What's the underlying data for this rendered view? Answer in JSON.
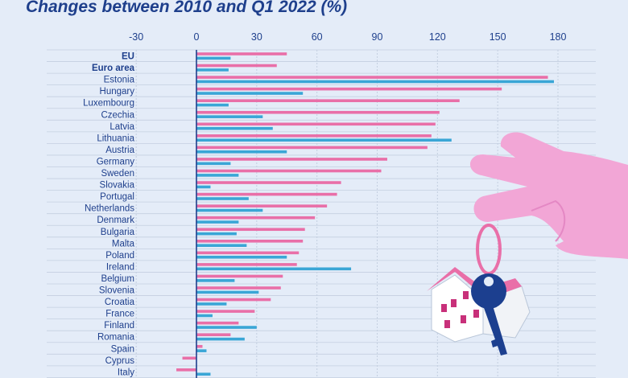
{
  "chart_data": {
    "type": "bar",
    "orientation": "horizontal",
    "title": "Changes between 2010 and Q1 2022 (%)",
    "xlabel": "",
    "ylabel": "",
    "xlim": [
      -30,
      180
    ],
    "xticks": [
      -30,
      0,
      30,
      60,
      90,
      120,
      150,
      180
    ],
    "grid": true,
    "categories": [
      "EU",
      "Euro area",
      "Estonia",
      "Hungary",
      "Luxembourg",
      "Czechia",
      "Latvia",
      "Lithuania",
      "Austria",
      "Germany",
      "Sweden",
      "Slovakia",
      "Portugal",
      "Netherlands",
      "Denmark",
      "Bulgaria",
      "Malta",
      "Poland",
      "Ireland",
      "Belgium",
      "Slovenia",
      "Croatia",
      "France",
      "Finland",
      "Romania",
      "Spain",
      "Cyprus",
      "Italy"
    ],
    "bold_categories": [
      "EU",
      "Euro area"
    ],
    "series": [
      {
        "name": "series-pink",
        "color": "#e96fa8",
        "values": [
          45,
          40,
          175,
          152,
          131,
          121,
          119,
          117,
          115,
          95,
          92,
          72,
          70,
          65,
          59,
          54,
          53,
          51,
          50,
          43,
          42,
          37,
          29,
          21,
          17,
          3,
          -7,
          -10
        ]
      },
      {
        "name": "series-blue",
        "color": "#3aa6d6",
        "values": [
          17,
          16,
          178,
          53,
          16,
          33,
          38,
          127,
          45,
          17,
          21,
          7,
          26,
          33,
          21,
          20,
          25,
          45,
          77,
          19,
          31,
          15,
          8,
          30,
          24,
          5,
          0,
          7
        ]
      }
    ]
  },
  "illustration": {
    "description_icon": "hand-holding-house-key-icon",
    "hand_color": "#f2a6d6",
    "house_roof_color": "#e96fa8",
    "key_color": "#1c3f8f"
  }
}
